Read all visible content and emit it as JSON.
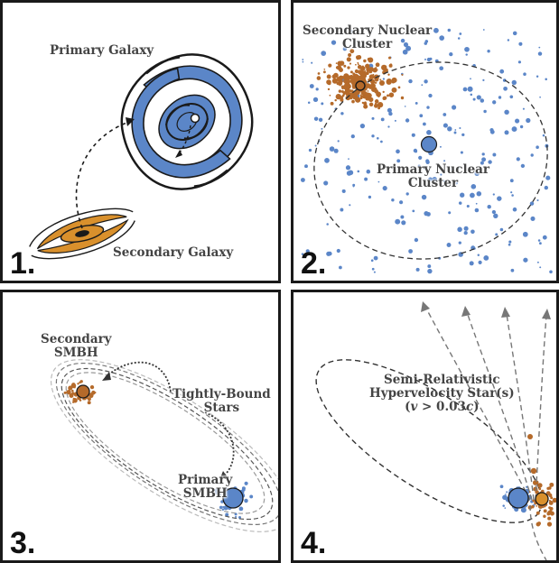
{
  "panels": [
    {
      "number": "1.",
      "labels": {
        "primary": "Primary Galaxy",
        "secondary": "Secondary Galaxy"
      }
    },
    {
      "number": "2.",
      "labels": {
        "secondary_line1": "Secondary Nuclear",
        "secondary_line2": "Cluster",
        "primary_line1": "Primary Nuclear",
        "primary_line2": "Cluster"
      }
    },
    {
      "number": "3.",
      "labels": {
        "secondary_line1": "Secondary",
        "secondary_line2": "SMBH",
        "stars_line1": "Tightly-Bound",
        "stars_line2": "Stars",
        "primary_line1": "Primary",
        "primary_line2": "SMBH"
      }
    },
    {
      "number": "4.",
      "labels": {
        "line1": "Semi-Relativistic",
        "line2": "Hypervelocity Star(s)",
        "line3_prefix": "(",
        "line3_v": "v",
        "line3_mid": " > 0.03",
        "line3_c": "c",
        "line3_suffix": ")"
      }
    }
  ],
  "colors": {
    "primary_blue": "#5b86c8",
    "secondary_orange": "#b56a2a",
    "galaxy_orange": "#d9902c",
    "border": "#1a1a1a",
    "dashed": "#444444"
  }
}
